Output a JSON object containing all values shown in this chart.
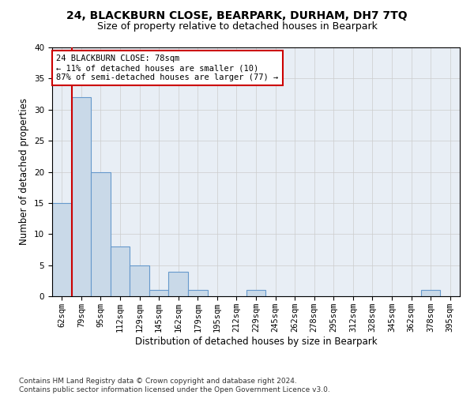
{
  "title1": "24, BLACKBURN CLOSE, BEARPARK, DURHAM, DH7 7TQ",
  "title2": "Size of property relative to detached houses in Bearpark",
  "xlabel": "Distribution of detached houses by size in Bearpark",
  "ylabel": "Number of detached properties",
  "bins": [
    "62sqm",
    "79sqm",
    "95sqm",
    "112sqm",
    "129sqm",
    "145sqm",
    "162sqm",
    "179sqm",
    "195sqm",
    "212sqm",
    "229sqm",
    "245sqm",
    "262sqm",
    "278sqm",
    "295sqm",
    "312sqm",
    "328sqm",
    "345sqm",
    "362sqm",
    "378sqm",
    "395sqm"
  ],
  "values": [
    15,
    32,
    20,
    8,
    5,
    1,
    4,
    1,
    0,
    0,
    1,
    0,
    0,
    0,
    0,
    0,
    0,
    0,
    0,
    1,
    0
  ],
  "bar_color": "#c9d9e8",
  "bar_edge_color": "#6699cc",
  "grid_color": "#cccccc",
  "background_color": "#e8eef5",
  "vline_color": "#cc0000",
  "annotation_text": "24 BLACKBURN CLOSE: 78sqm\n← 11% of detached houses are smaller (10)\n87% of semi-detached houses are larger (77) →",
  "annotation_box_color": "#ffffff",
  "annotation_box_edge": "#cc0000",
  "ylim": [
    0,
    40
  ],
  "yticks": [
    0,
    5,
    10,
    15,
    20,
    25,
    30,
    35,
    40
  ],
  "footer": "Contains HM Land Registry data © Crown copyright and database right 2024.\nContains public sector information licensed under the Open Government Licence v3.0.",
  "title1_fontsize": 10,
  "title2_fontsize": 9,
  "xlabel_fontsize": 8.5,
  "ylabel_fontsize": 8.5,
  "tick_fontsize": 7.5,
  "footer_fontsize": 6.5,
  "annot_fontsize": 7.5
}
